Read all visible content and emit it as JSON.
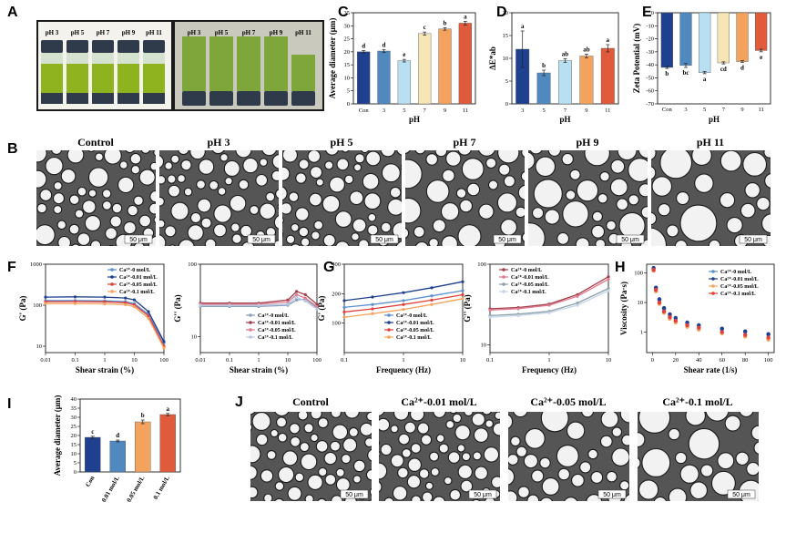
{
  "panel_labels": [
    "A",
    "B",
    "C",
    "D",
    "E",
    "F",
    "G",
    "H",
    "I",
    "J"
  ],
  "photo_a": {
    "left_labels": [
      "pH 3",
      "pH 5",
      "pH 7",
      "pH 9",
      "pH 11"
    ],
    "right_labels": [
      "pH 3",
      "pH 5",
      "pH 7",
      "pH 9",
      "pH 11"
    ],
    "colors": {
      "liquid_left": "#8fb21f",
      "liquid_right": "#7fa63a",
      "cap": "#2f3a4a"
    }
  },
  "micro_b": {
    "titles": [
      "Control",
      "pH 3",
      "pH 5",
      "pH 7",
      "pH 9",
      "pH 11"
    ],
    "scale": "50 μm"
  },
  "micro_j": {
    "titles": [
      "Control",
      "Ca²⁺-0.01 mol/L",
      "Ca²⁺-0.05 mol/L",
      "Ca²⁺-0.1 mol/L"
    ],
    "scale": "50 μm"
  },
  "chart_data": [
    {
      "id": "C",
      "type": "bar",
      "title": "",
      "categories": [
        "Con",
        "3",
        "5",
        "7",
        "9",
        "11"
      ],
      "values": [
        20.0,
        20.3,
        16.6,
        27.0,
        28.8,
        31.0
      ],
      "errors": [
        0.5,
        0.6,
        0.5,
        0.6,
        0.5,
        0.7
      ],
      "letters": [
        "d",
        "d",
        "e",
        "c",
        "b",
        "a"
      ],
      "colors": [
        "#1f3f8f",
        "#4f89c0",
        "#b9dff2",
        "#f6e6b6",
        "#f4a35f",
        "#e05a3c"
      ],
      "xlabel": "pH",
      "ylabel": "Average diameter (μm)",
      "ylim": [
        0,
        35
      ],
      "yticks": [
        0,
        5,
        10,
        15,
        20,
        25,
        30,
        35
      ]
    },
    {
      "id": "D",
      "type": "bar",
      "categories": [
        "3",
        "5",
        "7",
        "9",
        "11"
      ],
      "values": [
        12.0,
        6.8,
        9.5,
        10.5,
        12.2
      ],
      "errors": [
        4.0,
        0.6,
        0.4,
        0.4,
        0.8
      ],
      "letters": [
        "a",
        "b",
        "ab",
        "ab",
        "a"
      ],
      "colors": [
        "#1f3f8f",
        "#4f89c0",
        "#b9dff2",
        "#f4a35f",
        "#e05a3c"
      ],
      "xlabel": "pH",
      "ylabel": "ΔE*ab",
      "ylim": [
        0,
        20
      ],
      "yticks": [
        0,
        5,
        10,
        15,
        20
      ]
    },
    {
      "id": "E",
      "type": "bar",
      "categories": [
        "Con",
        "3",
        "5",
        "7",
        "9",
        "11"
      ],
      "values": [
        -42.0,
        -40.5,
        -46.0,
        -38.5,
        -37.5,
        -29.0
      ],
      "errors": [
        0.8,
        1.5,
        0.8,
        0.8,
        0.8,
        1.0
      ],
      "letters": [
        "b",
        "bc",
        "a",
        "cd",
        "d",
        "e"
      ],
      "colors": [
        "#1f3f8f",
        "#4f89c0",
        "#b9dff2",
        "#f6e6b6",
        "#f4a35f",
        "#e05a3c"
      ],
      "xlabel": "pH",
      "ylabel": "Zeta Potential (mV)",
      "ylim": [
        -70,
        0
      ],
      "yticks": [
        0,
        -10,
        -20,
        -30,
        -40,
        -50,
        -60,
        -70
      ]
    },
    {
      "id": "F1",
      "type": "line",
      "xlabel": "Shear strain (%)",
      "ylabel": "G' (Pa)",
      "xscale": "log",
      "xlim": [
        0.01,
        100
      ],
      "xticks": [
        "0.01",
        "0.1",
        "1",
        "10",
        "100"
      ],
      "yscale": "log",
      "ylim": [
        7,
        1000
      ],
      "yticks": [
        "10",
        "100",
        "1000"
      ],
      "series": [
        {
          "name": "Ca²⁺-0 mol/L",
          "color": "#5b8fd0",
          "values": [
            [
              0.01,
              130
            ],
            [
              0.1,
              130
            ],
            [
              1,
              128
            ],
            [
              5,
              123
            ],
            [
              10,
              110
            ],
            [
              30,
              60
            ],
            [
              100,
              12
            ]
          ]
        },
        {
          "name": "Ca²⁺-0.01 mol/L",
          "color": "#1f3f8f",
          "values": [
            [
              0.01,
              158
            ],
            [
              0.1,
              160
            ],
            [
              1,
              158
            ],
            [
              5,
              150
            ],
            [
              10,
              135
            ],
            [
              30,
              70
            ],
            [
              100,
              13
            ]
          ]
        },
        {
          "name": "Ca²⁺-0.05 mol/L",
          "color": "#e0403a",
          "values": [
            [
              0.01,
              122
            ],
            [
              0.1,
              123
            ],
            [
              1,
              121
            ],
            [
              5,
              115
            ],
            [
              10,
              102
            ],
            [
              30,
              55
            ],
            [
              100,
              10
            ]
          ]
        },
        {
          "name": "Ca²⁺-0.1 mol/L",
          "color": "#f4a35f",
          "values": [
            [
              0.01,
              110
            ],
            [
              0.1,
              110
            ],
            [
              1,
              108
            ],
            [
              5,
              103
            ],
            [
              10,
              92
            ],
            [
              30,
              48
            ],
            [
              100,
              9
            ]
          ]
        }
      ]
    },
    {
      "id": "F2",
      "type": "line",
      "xlabel": "Shear strain (%)",
      "ylabel": "G'' (Pa)",
      "xscale": "log",
      "xlim": [
        0.01,
        100
      ],
      "xticks": [
        "0.01",
        "0.1",
        "1",
        "10",
        "100"
      ],
      "yscale": "log",
      "ylim": [
        6,
        100
      ],
      "yticks": [
        "10",
        "100"
      ],
      "series": [
        {
          "name": "Ca²⁺-0 mol/L",
          "color": "#8aa0c0",
          "values": [
            [
              0.01,
              26
            ],
            [
              0.1,
              26
            ],
            [
              1,
              26
            ],
            [
              10,
              27
            ],
            [
              20,
              32
            ],
            [
              40,
              33
            ],
            [
              100,
              25
            ]
          ]
        },
        {
          "name": "Ca²⁺-0.01 mol/L",
          "color": "#a0404a",
          "values": [
            [
              0.01,
              29
            ],
            [
              0.1,
              29
            ],
            [
              1,
              29
            ],
            [
              10,
              32
            ],
            [
              20,
              42
            ],
            [
              40,
              38
            ],
            [
              100,
              28
            ]
          ]
        },
        {
          "name": "Ca²⁺-0.05 mol/L",
          "color": "#e07a90",
          "values": [
            [
              0.01,
              28
            ],
            [
              0.1,
              28
            ],
            [
              1,
              28
            ],
            [
              10,
              30
            ],
            [
              20,
              38
            ],
            [
              40,
              34
            ],
            [
              100,
              26
            ]
          ]
        },
        {
          "name": "Ca²⁺-0.1 mol/L",
          "color": "#b8c8e0",
          "values": [
            [
              0.01,
              27
            ],
            [
              0.1,
              27
            ],
            [
              1,
              27
            ],
            [
              10,
              28
            ],
            [
              20,
              35
            ],
            [
              40,
              31
            ],
            [
              100,
              24
            ]
          ]
        }
      ]
    },
    {
      "id": "G1",
      "type": "line",
      "xlabel": "Frequency (Hz)",
      "ylabel": "G' (Pa)",
      "xscale": "log",
      "xlim": [
        0.1,
        10
      ],
      "xticks": [
        "0.1",
        "1",
        "10"
      ],
      "yscale": "log",
      "ylim": [
        50,
        400
      ],
      "yticks": [
        "100",
        "200",
        "400"
      ],
      "series": [
        {
          "name": "Ca²⁺-0 mol/L",
          "color": "#5b8fd0",
          "values": [
            [
              0.1,
              145
            ],
            [
              0.3,
              155
            ],
            [
              1,
              170
            ],
            [
              3,
              190
            ],
            [
              10,
              215
            ]
          ]
        },
        {
          "name": "Ca²⁺-0.01 mol/L",
          "color": "#1f3f8f",
          "values": [
            [
              0.1,
              170
            ],
            [
              0.3,
              185
            ],
            [
              1,
              205
            ],
            [
              3,
              230
            ],
            [
              10,
              265
            ]
          ]
        },
        {
          "name": "Ca²⁺-0.05 mol/L",
          "color": "#e0403a",
          "values": [
            [
              0.1,
              130
            ],
            [
              0.3,
              140
            ],
            [
              1,
              155
            ],
            [
              3,
              172
            ],
            [
              10,
              195
            ]
          ]
        },
        {
          "name": "Ca²⁺-0.1 mol/L",
          "color": "#f4a35f",
          "values": [
            [
              0.1,
              115
            ],
            [
              0.3,
              125
            ],
            [
              1,
              138
            ],
            [
              3,
              155
            ],
            [
              10,
              178
            ]
          ]
        }
      ]
    },
    {
      "id": "G2",
      "type": "line",
      "xlabel": "Frequency (Hz)",
      "ylabel": "G'' (Pa)",
      "xscale": "log",
      "xlim": [
        0.1,
        10
      ],
      "xticks": [
        "0.1",
        "1",
        "10"
      ],
      "yscale": "log",
      "ylim": [
        8,
        100
      ],
      "yticks": [
        "10",
        "100"
      ],
      "series": [
        {
          "name": "Ca²⁺-0 mol/L",
          "color": "#a0404a",
          "values": [
            [
              0.1,
              28
            ],
            [
              0.3,
              29
            ],
            [
              1,
              32
            ],
            [
              3,
              42
            ],
            [
              10,
              70
            ]
          ]
        },
        {
          "name": "Ca²⁺-0.01 mol/L",
          "color": "#e07a90",
          "values": [
            [
              0.1,
              27
            ],
            [
              0.3,
              28
            ],
            [
              1,
              31
            ],
            [
              3,
              40
            ],
            [
              10,
              65
            ]
          ]
        },
        {
          "name": "Ca²⁺-0.05 mol/L",
          "color": "#8aa0a8",
          "values": [
            [
              0.1,
              23
            ],
            [
              0.3,
              24
            ],
            [
              1,
              26
            ],
            [
              3,
              33
            ],
            [
              10,
              50
            ]
          ]
        },
        {
          "name": "Ca²⁺-0.1 mol/L",
          "color": "#c8d4e8",
          "values": [
            [
              0.1,
              22
            ],
            [
              0.3,
              23
            ],
            [
              1,
              25
            ],
            [
              3,
              31
            ],
            [
              10,
              47
            ]
          ]
        }
      ]
    },
    {
      "id": "H",
      "type": "scatter",
      "xlabel": "Shear rate (1/s)",
      "ylabel": "Viscosity (Pa·s)",
      "xscale": "linear",
      "xlim": [
        -5,
        105
      ],
      "xticks": [
        "0",
        "20",
        "40",
        "60",
        "80",
        "100"
      ],
      "yscale": "log",
      "ylim": [
        0.2,
        200
      ],
      "yticks": [
        "1",
        "10",
        "100"
      ],
      "series": [
        {
          "name": "Ca²⁺-0 mol/L",
          "color": "#5b8fd0",
          "values": [
            [
              1,
              140
            ],
            [
              3,
              30
            ],
            [
              6,
              12
            ],
            [
              10,
              6
            ],
            [
              15,
              3.6
            ],
            [
              20,
              2.8
            ],
            [
              30,
              2.0
            ],
            [
              40,
              1.6
            ],
            [
              60,
              1.2
            ],
            [
              80,
              1.0
            ],
            [
              100,
              0.8
            ]
          ]
        },
        {
          "name": "Ca²⁺-0.01 mol/L",
          "color": "#1f3f8f",
          "values": [
            [
              1,
              150
            ],
            [
              3,
              32
            ],
            [
              6,
              13
            ],
            [
              10,
              6.5
            ],
            [
              15,
              4
            ],
            [
              20,
              3
            ],
            [
              30,
              2.1
            ],
            [
              40,
              1.7
            ],
            [
              60,
              1.3
            ],
            [
              80,
              1.05
            ],
            [
              100,
              0.85
            ]
          ]
        },
        {
          "name": "Ca²⁺-0.05 mol/L",
          "color": "#f4a35f",
          "values": [
            [
              1,
              120
            ],
            [
              3,
              24
            ],
            [
              6,
              9
            ],
            [
              10,
              4.5
            ],
            [
              15,
              2.8
            ],
            [
              20,
              2.1
            ],
            [
              30,
              1.5
            ],
            [
              40,
              1.2
            ],
            [
              60,
              0.9
            ],
            [
              80,
              0.7
            ],
            [
              100,
              0.55
            ]
          ]
        },
        {
          "name": "Ca²⁺-0.1 mol/L",
          "color": "#e0403a",
          "values": [
            [
              1,
              130
            ],
            [
              3,
              27
            ],
            [
              6,
              10
            ],
            [
              10,
              5
            ],
            [
              15,
              3.2
            ],
            [
              20,
              2.4
            ],
            [
              30,
              1.7
            ],
            [
              40,
              1.4
            ],
            [
              60,
              1.0
            ],
            [
              80,
              0.8
            ],
            [
              100,
              0.65
            ]
          ]
        }
      ]
    },
    {
      "id": "I",
      "type": "bar",
      "categories": [
        "Con",
        "0.01 mol/L",
        "0.05 mol/L",
        "0.1 mol/L"
      ],
      "values": [
        19.0,
        17.0,
        27.5,
        31.5
      ],
      "errors": [
        0.6,
        0.5,
        1.0,
        0.6
      ],
      "letters": [
        "c",
        "d",
        "b",
        "a"
      ],
      "colors": [
        "#1f3f8f",
        "#4f89c0",
        "#f4a35f",
        "#e05a3c"
      ],
      "xlabel": "",
      "ylabel": "Average diameter (μm)",
      "ylim": [
        0,
        40
      ],
      "yticks": [
        0,
        5,
        10,
        15,
        20,
        25,
        30,
        35,
        40
      ]
    }
  ]
}
